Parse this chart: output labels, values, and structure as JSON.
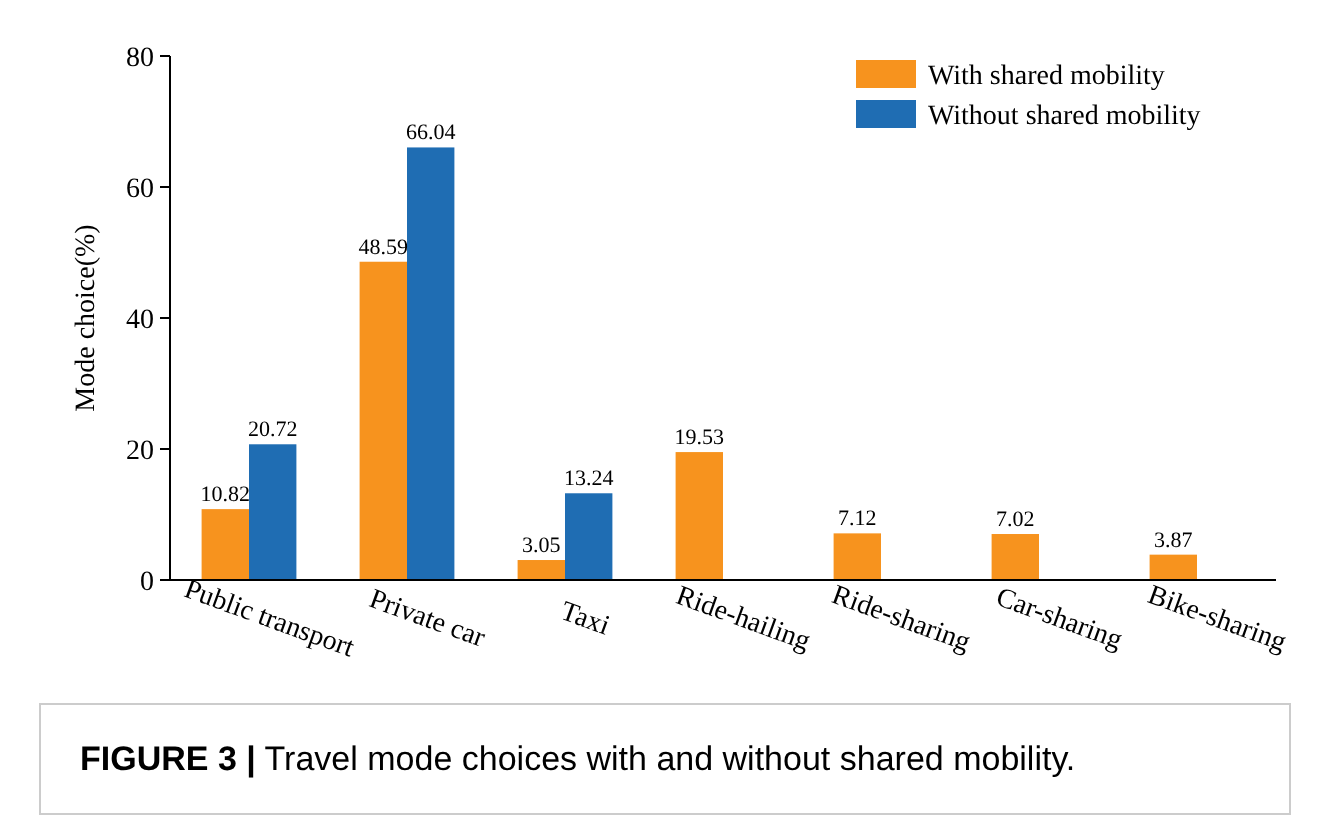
{
  "chart_data": {
    "type": "bar",
    "ylabel": "Mode choice(%)",
    "categories": [
      "Public transport",
      "Private car",
      "Taxi",
      "Ride-hailing",
      "Ride-sharing",
      "Car-sharing",
      "Bike-sharing"
    ],
    "series": [
      {
        "name": "With shared mobility",
        "color": "#f7931e",
        "values": [
          10.82,
          48.59,
          3.05,
          19.53,
          7.12,
          7.02,
          3.87
        ]
      },
      {
        "name": "Without shared mobility",
        "color": "#1f6db3",
        "values": [
          20.72,
          66.04,
          13.24,
          null,
          null,
          null,
          null
        ]
      }
    ],
    "ylim": [
      0,
      80
    ],
    "yticks": [
      0,
      20,
      40,
      60,
      80
    ],
    "data_labels": true,
    "legend": "top right",
    "grid": false,
    "annotations": [
      "FIGURE 3 | Travel mode choices with and without shared mobility."
    ]
  }
}
